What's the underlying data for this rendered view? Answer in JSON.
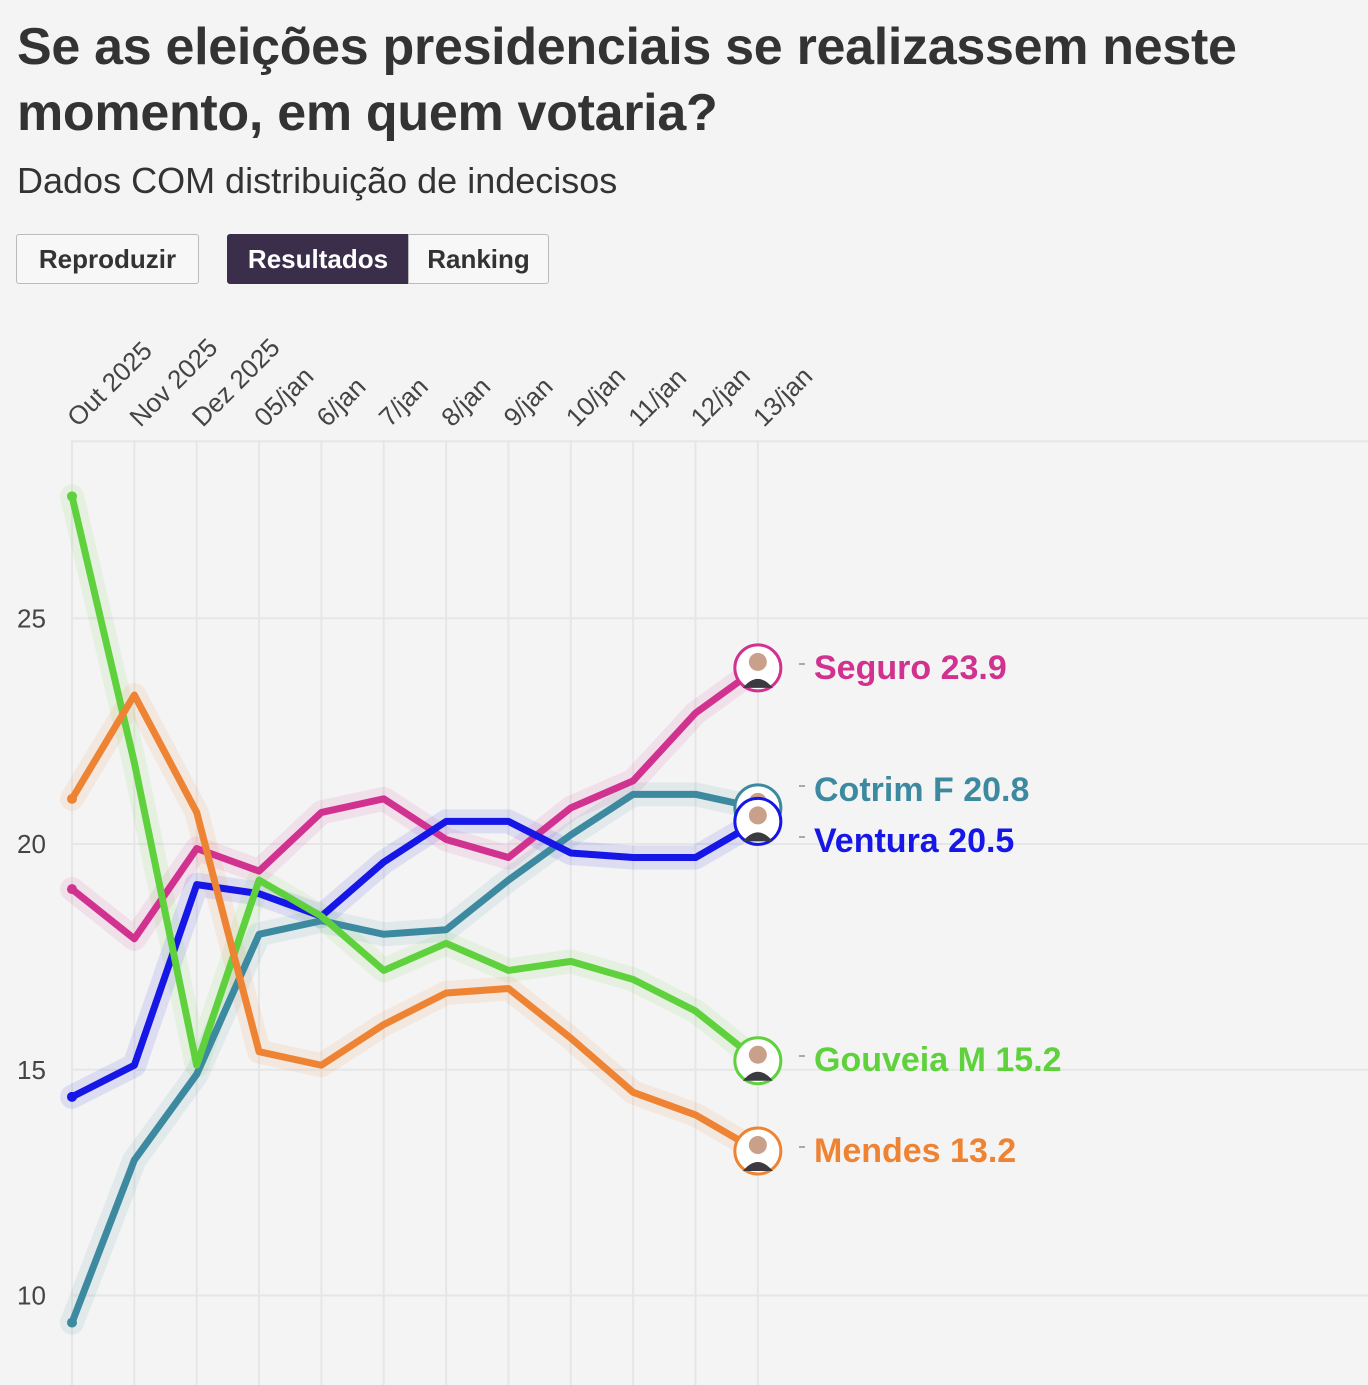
{
  "title": "Se as eleições presidenciais se realizassem neste momento, em quem votaria?",
  "subtitle": "Dados COM distribuição de indecisos",
  "buttons": {
    "play": "Reproduzir",
    "results": "Resultados",
    "ranking": "Ranking"
  },
  "chart_data": {
    "type": "line",
    "title": "Se as eleições presidenciais se realizassem neste momento, em quem votaria?",
    "categories": [
      "Out 2025",
      "Nov 2025",
      "Dez 2025",
      "05/jan",
      "6/jan",
      "7/jan",
      "8/jan",
      "9/jan",
      "10/jan",
      "11/jan",
      "12/jan",
      "13/jan"
    ],
    "yticks": [
      10,
      15,
      20,
      25
    ],
    "ylim": [
      8,
      28.7
    ],
    "grid": true,
    "series": [
      {
        "name": "Seguro",
        "label": "Seguro 23.9",
        "color": "#d1318f",
        "values": [
          19.0,
          17.9,
          19.9,
          19.4,
          20.7,
          21.0,
          20.1,
          19.7,
          20.8,
          21.4,
          22.9,
          23.9
        ]
      },
      {
        "name": "Cotrim F",
        "label": "Cotrim F 20.8",
        "color": "#3d8aa0",
        "values": [
          9.4,
          13.0,
          14.9,
          18.0,
          18.3,
          18.0,
          18.1,
          19.2,
          20.2,
          21.1,
          21.1,
          20.8
        ]
      },
      {
        "name": "Ventura",
        "label": "Ventura 20.5",
        "color": "#1616e6",
        "values": [
          14.4,
          15.1,
          19.1,
          18.9,
          18.4,
          19.6,
          20.5,
          20.5,
          19.8,
          19.7,
          19.7,
          20.5
        ]
      },
      {
        "name": "Gouveia M",
        "label": "Gouveia M 15.2",
        "color": "#5ed13c",
        "values": [
          27.7,
          21.8,
          15.1,
          19.2,
          18.4,
          17.2,
          17.8,
          17.2,
          17.4,
          17.0,
          16.3,
          15.2
        ]
      },
      {
        "name": "Mendes",
        "label": "Mendes 13.2",
        "color": "#ee8433",
        "values": [
          21.0,
          23.3,
          20.7,
          15.4,
          15.1,
          16.0,
          16.7,
          16.8,
          15.7,
          14.5,
          14.0,
          13.2
        ]
      }
    ]
  }
}
